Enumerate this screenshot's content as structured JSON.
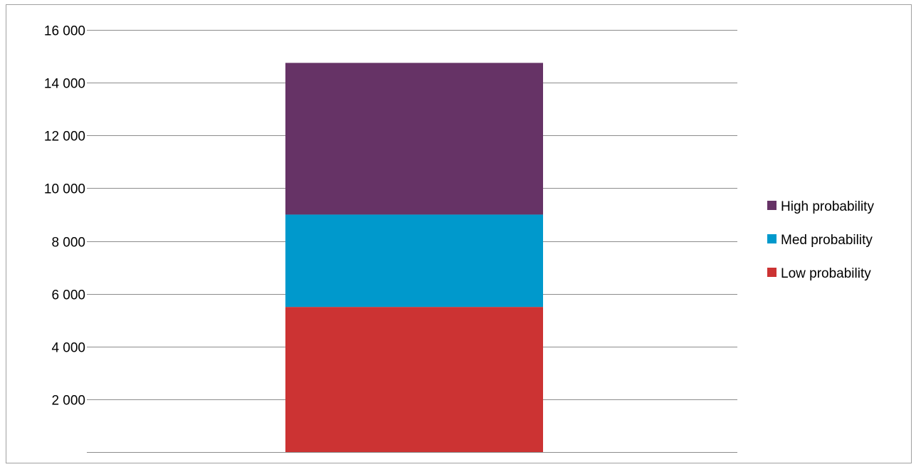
{
  "chart_data": {
    "type": "bar",
    "stacked": true,
    "categories": [
      ""
    ],
    "series": [
      {
        "name": "Low probability",
        "values": [
          5500
        ],
        "color": "#cc3333"
      },
      {
        "name": "Med probability",
        "values": [
          3500
        ],
        "color": "#0099cc"
      },
      {
        "name": "High probability",
        "values": [
          5750
        ],
        "color": "#663366"
      }
    ],
    "title": "",
    "xlabel": "",
    "ylabel": "",
    "ylim": [
      0,
      16000
    ],
    "yticks": [
      2000,
      4000,
      6000,
      8000,
      10000,
      12000,
      14000,
      16000
    ],
    "ytick_labels": [
      "2 000",
      "4 000",
      "6 000",
      "8 000",
      "10 000",
      "12 000",
      "14 000",
      "16 000"
    ],
    "grid": true,
    "legend_position": "right",
    "legend_order": [
      "High probability",
      "Med probability",
      "Low probability"
    ]
  }
}
